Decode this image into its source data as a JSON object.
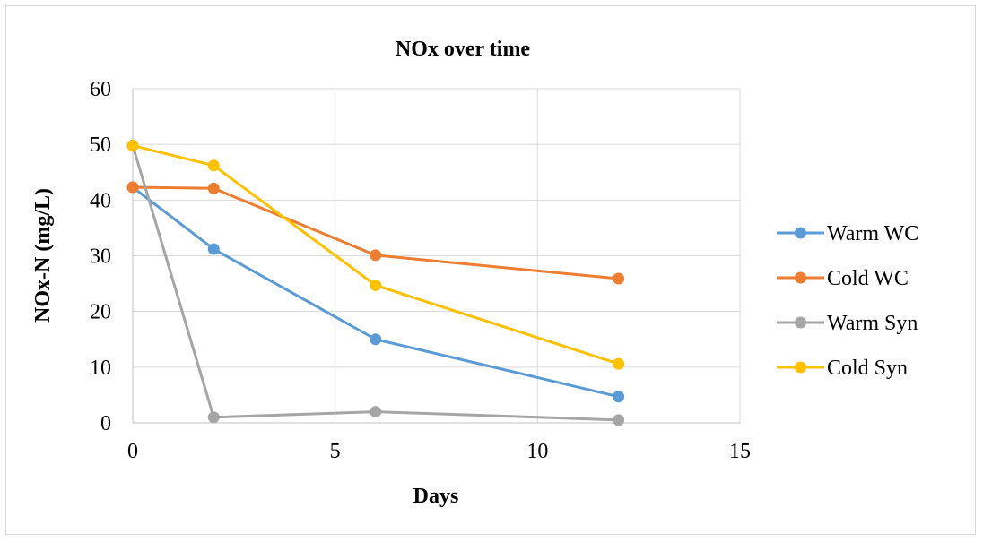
{
  "chart_data": {
    "type": "line",
    "title": "NOx over time",
    "xlabel": "Days",
    "ylabel": "NOx-N (mg/L)",
    "xlim": [
      0,
      15
    ],
    "ylim": [
      0,
      60
    ],
    "xticks": [
      0,
      5,
      10,
      15
    ],
    "yticks": [
      0,
      10,
      20,
      30,
      40,
      50,
      60
    ],
    "grid": true,
    "legend_position": "right",
    "x": [
      0,
      2,
      6,
      12
    ],
    "series": [
      {
        "name": "Warm WC",
        "values": [
          42.3,
          31.2,
          15.0,
          4.7
        ],
        "color": "#5b9bd5"
      },
      {
        "name": "Cold WC",
        "values": [
          42.3,
          42.1,
          30.1,
          25.9
        ],
        "color": "#ed7d31"
      },
      {
        "name": "Warm Syn",
        "values": [
          49.8,
          1.0,
          2.0,
          0.5
        ],
        "color": "#a5a5a5"
      },
      {
        "name": "Cold Syn",
        "values": [
          49.8,
          46.2,
          24.7,
          10.6
        ],
        "color": "#ffc000"
      }
    ]
  }
}
